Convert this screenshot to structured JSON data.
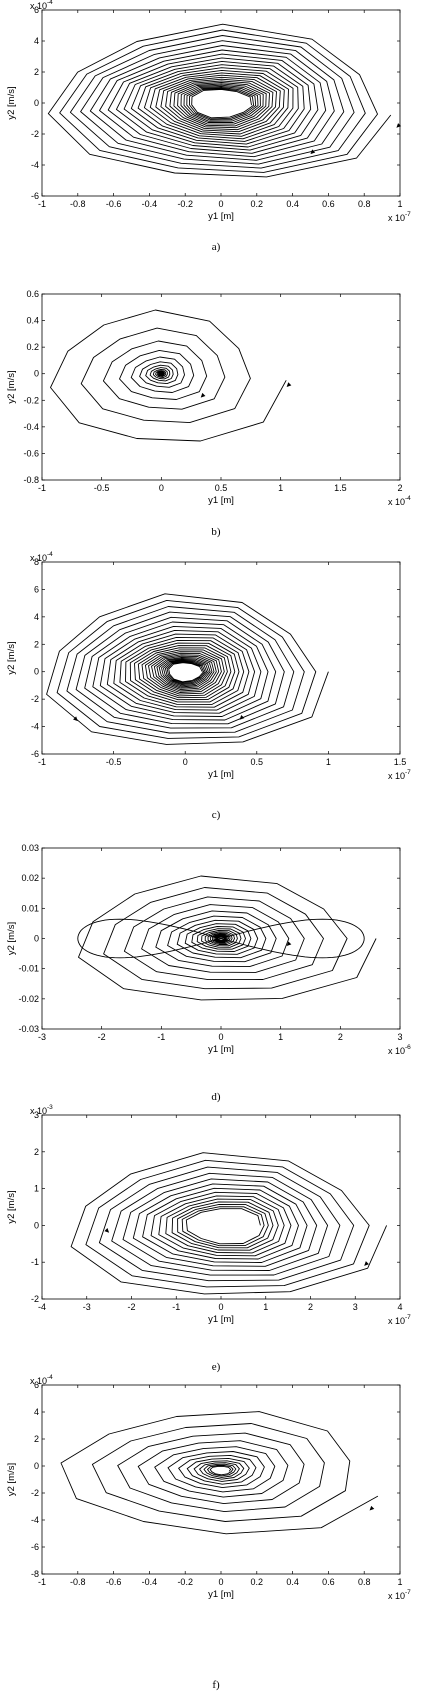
{
  "figure": {
    "background": "#ffffff",
    "line_color": "#000000"
  },
  "chart_data": [
    {
      "caption": "a)",
      "type": "line",
      "title": "",
      "xlabel": "y1 [m]",
      "ylabel": "y2 [m/s]",
      "x_multiplier": {
        "base": "x 10",
        "exp": "-7"
      },
      "y_multiplier": {
        "base": "x 10",
        "exp": "-4"
      },
      "xlim": [
        -1,
        1
      ],
      "ylim": [
        -6,
        6
      ],
      "xticks": [
        "-1",
        "-0.8",
        "-0.6",
        "-0.4",
        "-0.2",
        "0",
        "0.2",
        "0.4",
        "0.6",
        "0.8",
        "1"
      ],
      "yticks": [
        "-6",
        "-4",
        "-2",
        "0",
        "2",
        "4",
        "6"
      ],
      "xtick_values": [
        -1,
        -0.8,
        -0.6,
        -0.4,
        -0.2,
        0,
        0.2,
        0.4,
        0.6,
        0.8,
        1
      ],
      "ytick_values": [
        -6,
        -4,
        -2,
        0,
        2,
        4,
        6
      ],
      "trajectory": {
        "x0": 0.98,
        "y0": -0.8,
        "xmax": 0.96,
        "ymax": 5.1,
        "decay": 0.93,
        "turns": 24,
        "center": [
          0.0,
          0.0
        ]
      },
      "arrows": [
        {
          "x": 0.98,
          "y": -1.6
        },
        {
          "x": 0.5,
          "y": -3.3
        }
      ],
      "grid": false,
      "legend": "none"
    },
    {
      "caption": "b)",
      "type": "line",
      "title": "",
      "xlabel": "y1 [m]",
      "ylabel": "y2 [m/s]",
      "x_multiplier": {
        "base": "x 10",
        "exp": "-4"
      },
      "y_multiplier": null,
      "xlim": [
        -1,
        2
      ],
      "ylim": [
        -0.8,
        0.6
      ],
      "xticks": [
        "-1",
        "-0.5",
        "0",
        "0.5",
        "1",
        "1.5",
        "2"
      ],
      "yticks": [
        "-0.8",
        "-0.6",
        "-0.4",
        "-0.2",
        "0",
        "0.2",
        "0.4",
        "0.6"
      ],
      "xtick_values": [
        -1,
        -0.5,
        0,
        0.5,
        1,
        1.5,
        2
      ],
      "ytick_values": [
        -0.8,
        -0.6,
        -0.4,
        -0.2,
        0,
        0.2,
        0.4,
        0.6
      ],
      "trajectory": {
        "x0": 1.05,
        "y0": -0.05,
        "xmax": 1.05,
        "ymax": 0.58,
        "decay": 0.72,
        "turns": 16,
        "center": [
          0.0,
          0.0
        ]
      },
      "arrows": [
        {
          "x": 1.05,
          "y": -0.1
        },
        {
          "x": 0.33,
          "y": -0.18
        }
      ],
      "grid": false,
      "legend": "none"
    },
    {
      "caption": "c)",
      "type": "line",
      "title": "",
      "xlabel": "y1 [m]",
      "ylabel": "y2 [m/s]",
      "x_multiplier": {
        "base": "x 10",
        "exp": "-7"
      },
      "y_multiplier": {
        "base": "x 10",
        "exp": "-4"
      },
      "xlim": [
        -1,
        1.5
      ],
      "ylim": [
        -6,
        8
      ],
      "xticks": [
        "-1",
        "-0.5",
        "0",
        "0.5",
        "1",
        "1.5"
      ],
      "yticks": [
        "-6",
        "-4",
        "-2",
        "0",
        "2",
        "4",
        "6",
        "8"
      ],
      "xtick_values": [
        -1,
        -0.5,
        0,
        0.5,
        1,
        1.5
      ],
      "ytick_values": [
        -6,
        -4,
        -2,
        0,
        2,
        4,
        6,
        8
      ],
      "trajectory": {
        "x0": 1.0,
        "y0": 0.0,
        "xmax": 1.0,
        "ymax": 5.8,
        "decay": 0.92,
        "turns": 26,
        "center": [
          0.0,
          0.0
        ]
      },
      "arrows": [
        {
          "x": -0.75,
          "y": -3.6
        },
        {
          "x": 0.38,
          "y": -3.5
        }
      ],
      "grid": false,
      "legend": "none"
    },
    {
      "caption": "d)",
      "type": "line",
      "title": "",
      "xlabel": "y1 [m]",
      "ylabel": "y2 [m/s]",
      "x_multiplier": {
        "base": "x 10",
        "exp": "-6"
      },
      "y_multiplier": null,
      "xlim": [
        -3,
        3
      ],
      "ylim": [
        -0.03,
        0.03
      ],
      "xticks": [
        "-3",
        "-2",
        "-1",
        "0",
        "1",
        "2",
        "3"
      ],
      "yticks": [
        "-0.03",
        "-0.02",
        "-0.01",
        "0",
        "0.01",
        "0.02",
        "0.03"
      ],
      "xtick_values": [
        -3,
        -2,
        -1,
        0,
        1,
        2,
        3
      ],
      "ytick_values": [
        -0.03,
        -0.02,
        -0.01,
        0,
        0.01,
        0.02,
        0.03
      ],
      "trajectory": {
        "x0": 2.6,
        "y0": 0.0,
        "xmax": 2.6,
        "ymax": 0.023,
        "decay": 0.82,
        "turns": 20,
        "center": [
          0.0,
          0.0
        ]
      },
      "lobes": {
        "x": 2.4,
        "y": 0.008
      },
      "arrows": [
        {
          "x": 1.1,
          "y": -0.0025
        }
      ],
      "grid": false,
      "legend": "none"
    },
    {
      "caption": "e)",
      "type": "line",
      "title": "",
      "xlabel": "y1 [m]",
      "ylabel": "y2 [m/s]",
      "x_multiplier": {
        "base": "x 10",
        "exp": "-7"
      },
      "y_multiplier": {
        "base": "x 10",
        "exp": "-3"
      },
      "xlim": [
        -4,
        4
      ],
      "ylim": [
        -2,
        3
      ],
      "xticks": [
        "-4",
        "-3",
        "-2",
        "-1",
        "0",
        "1",
        "2",
        "3",
        "4"
      ],
      "yticks": [
        "-2",
        "-1",
        "0",
        "1",
        "2",
        "3"
      ],
      "xtick_values": [
        -4,
        -3,
        -2,
        -1,
        0,
        1,
        2,
        3,
        4
      ],
      "ytick_values": [
        -2,
        -1,
        0,
        1,
        2,
        3
      ],
      "trajectory": {
        "x0": 3.6,
        "y0": 0.0,
        "xmax": 3.6,
        "ymax": 2.05,
        "decay": 0.9,
        "turns": 14,
        "center": [
          0.1,
          0.0
        ]
      },
      "arrows": [
        {
          "x": -2.5,
          "y": -0.2
        },
        {
          "x": 3.2,
          "y": -1.1
        }
      ],
      "grid": false,
      "legend": "none"
    },
    {
      "caption": "f)",
      "type": "line",
      "title": "",
      "xlabel": "y1 [m]",
      "ylabel": "y2 [m/s]",
      "x_multiplier": {
        "base": "x 10",
        "exp": "-7"
      },
      "y_multiplier": {
        "base": "x 10",
        "exp": "-4"
      },
      "xlim": [
        -1,
        1
      ],
      "ylim": [
        -8,
        6
      ],
      "xticks": [
        "-1",
        "-0.8",
        "-0.6",
        "-0.4",
        "-0.2",
        "0",
        "0.2",
        "0.4",
        "0.6",
        "0.8",
        "1"
      ],
      "yticks": [
        "-8",
        "-6",
        "-4",
        "-2",
        "0",
        "2",
        "4",
        "6"
      ],
      "xtick_values": [
        -1,
        -0.8,
        -0.6,
        -0.4,
        -0.2,
        0,
        0.2,
        0.4,
        0.6,
        0.8,
        1
      ],
      "ytick_values": [
        -8,
        -6,
        -4,
        -2,
        0,
        2,
        4,
        6
      ],
      "trajectory": {
        "x0": 1.0,
        "y0": -2.5,
        "xmax": 0.95,
        "ymax": 5.0,
        "decay": 0.8,
        "turns": 13,
        "center": [
          0.0,
          -0.3
        ]
      },
      "arrows": [
        {
          "x": 0.83,
          "y": -3.3
        }
      ],
      "grid": false,
      "legend": "none"
    }
  ]
}
